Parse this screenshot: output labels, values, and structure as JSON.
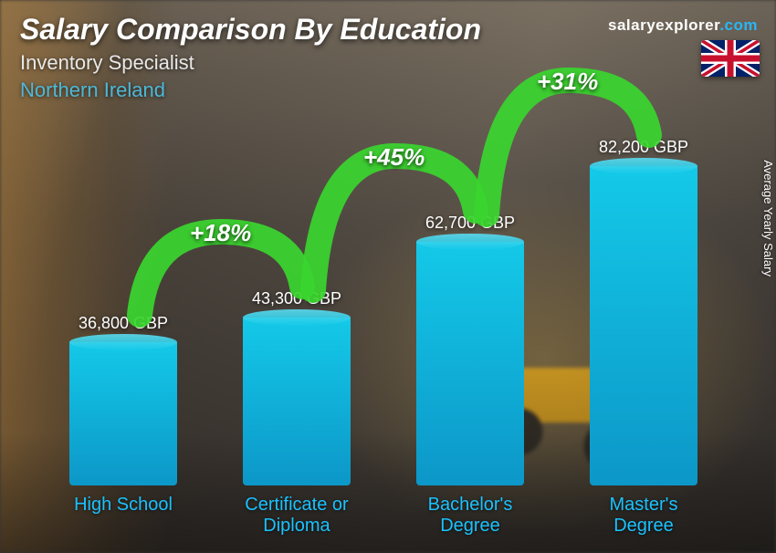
{
  "title": "Salary Comparison By Education",
  "subtitle_job": "Inventory Specialist",
  "subtitle_region": "Northern Ireland",
  "brand_name": "salaryexplorer",
  "brand_domain": ".com",
  "y_axis_label": "Average Yearly Salary",
  "region_color": "#4db8d8",
  "category_color": "#19c2ff",
  "bar_fill_top": "#14c9e8",
  "bar_fill_bottom": "#0c97c8",
  "bar_top_color": "#5ddcf0",
  "arc_color": "#39d62f",
  "arrow_color": "#2bbd22",
  "flag": "uk",
  "chart": {
    "type": "bar",
    "max_value": 82200,
    "max_bar_height": 350,
    "bars": [
      {
        "category": "High School",
        "value": 36800,
        "value_label": "36,800 GBP"
      },
      {
        "category": "Certificate or Diploma",
        "value": 43300,
        "value_label": "43,300 GBP"
      },
      {
        "category": "Bachelor's Degree",
        "value": 62700,
        "value_label": "62,700 GBP"
      },
      {
        "category": "Master's Degree",
        "value": 82200,
        "value_label": "82,200 GBP"
      }
    ],
    "increases": [
      {
        "from": 0,
        "to": 1,
        "label": "+18%"
      },
      {
        "from": 1,
        "to": 2,
        "label": "+45%"
      },
      {
        "from": 2,
        "to": 3,
        "label": "+31%"
      }
    ]
  }
}
